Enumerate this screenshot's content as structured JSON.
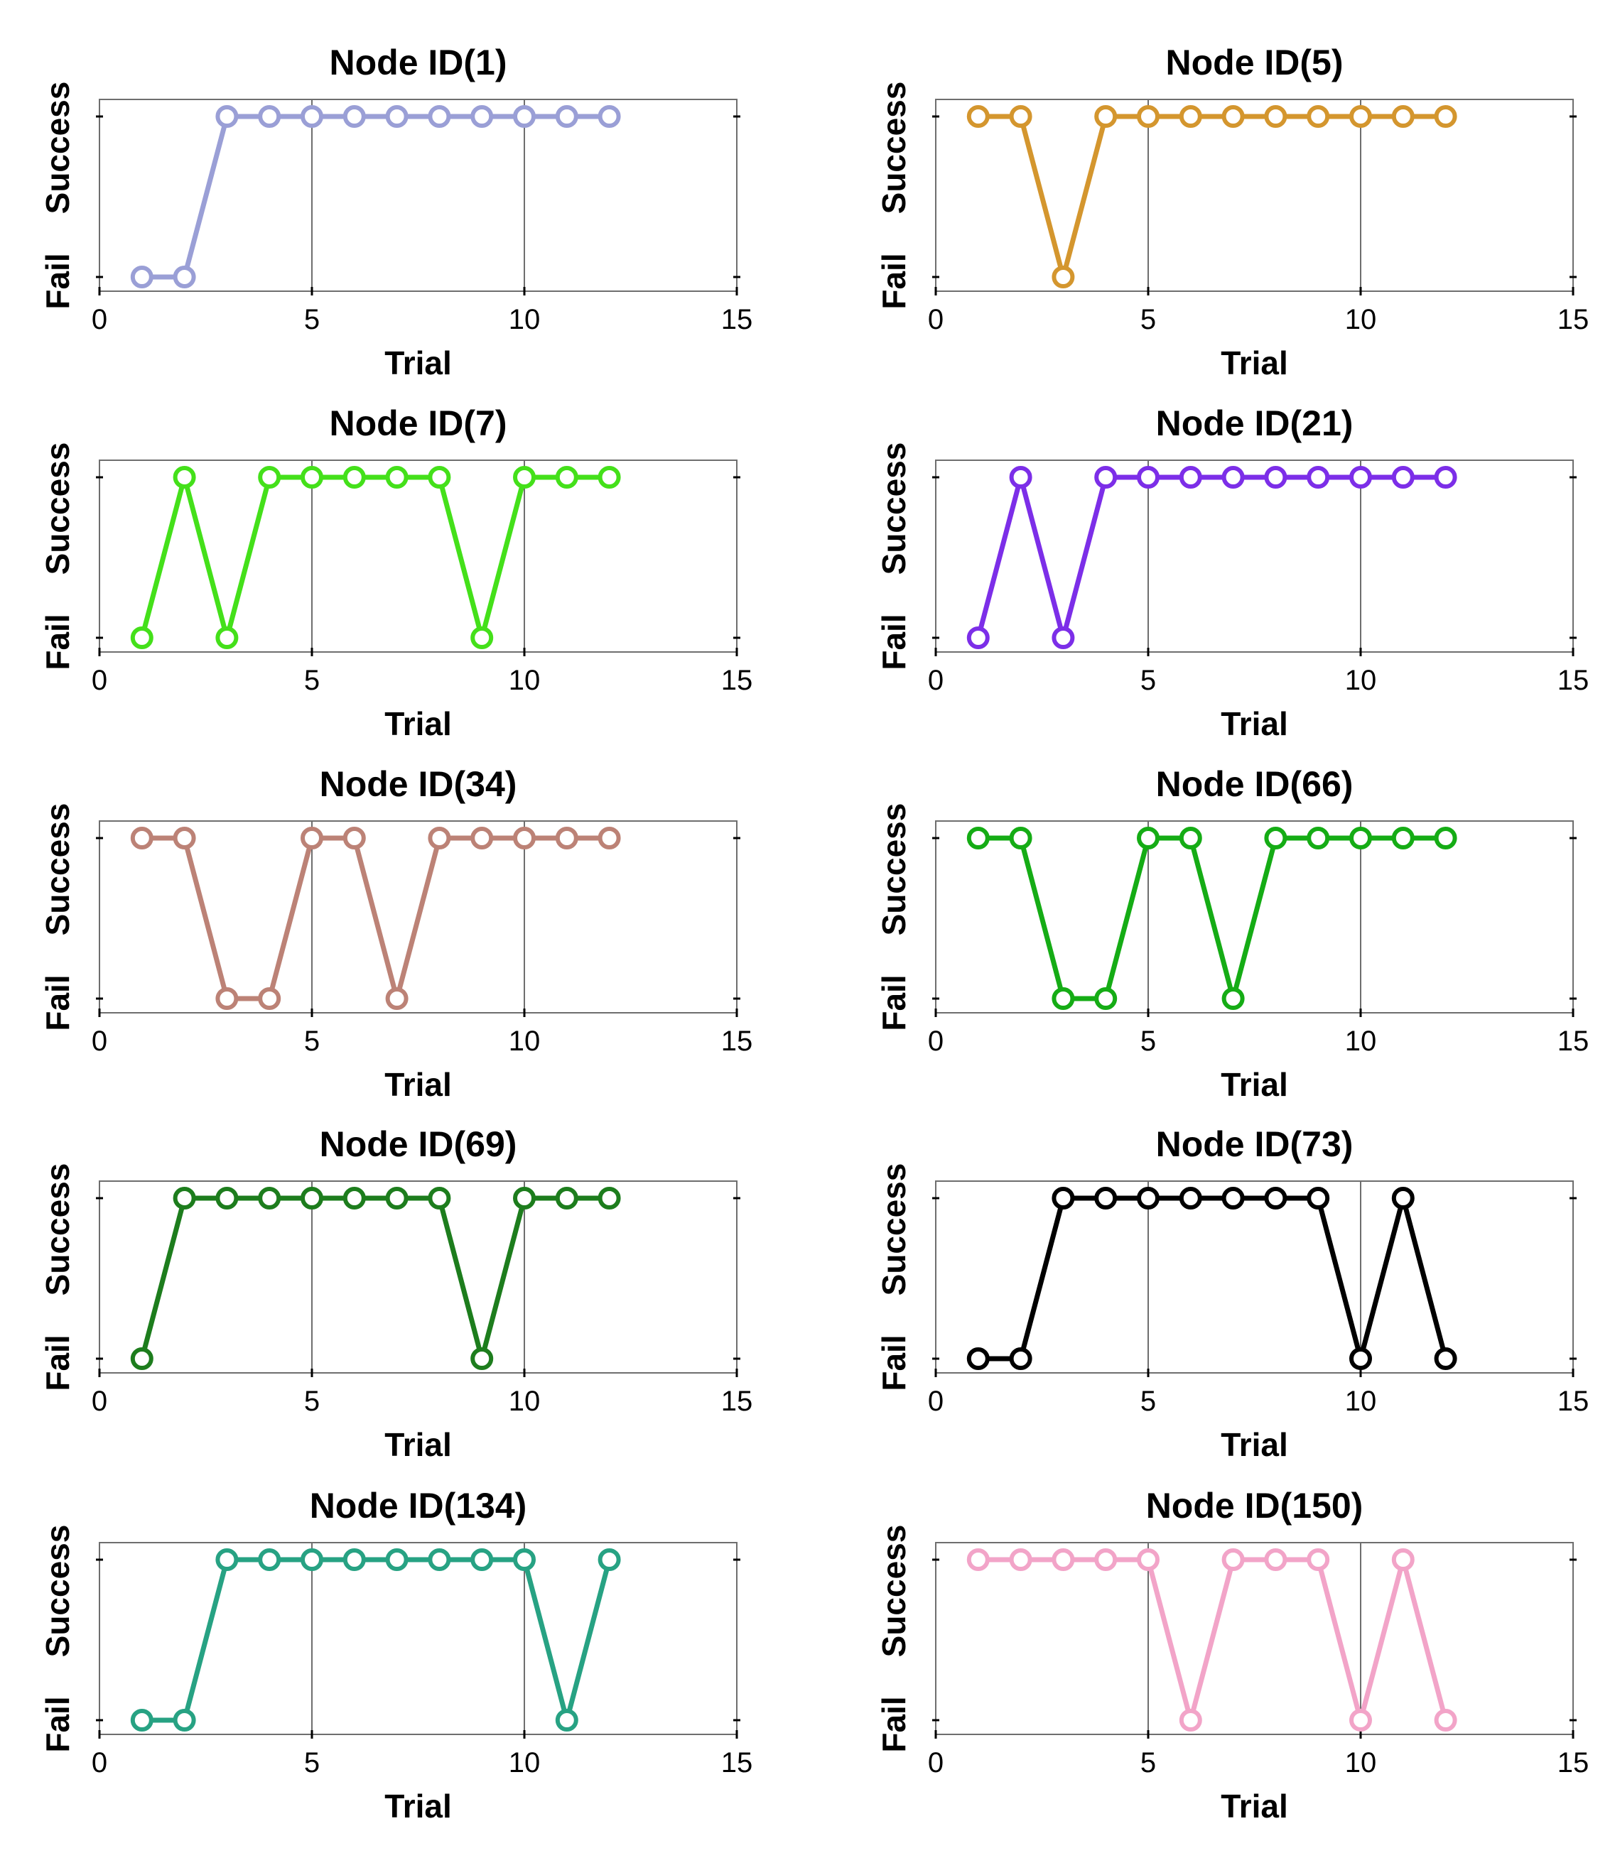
{
  "chart_data": [
    {
      "type": "line",
      "title": "Node ID(1)",
      "xlabel": "Trial",
      "ylabel_top": "Success",
      "ylabel_bottom": "Fail",
      "xlim": [
        0,
        15
      ],
      "xticks": [
        "0",
        "5",
        "10",
        "15"
      ],
      "grid": "vertical",
      "x": [
        1,
        2,
        3,
        4,
        5,
        6,
        7,
        8,
        9,
        10,
        11,
        12
      ],
      "values": [
        0,
        0,
        1,
        1,
        1,
        1,
        1,
        1,
        1,
        1,
        1,
        1
      ],
      "color": "#9a9fd6"
    },
    {
      "type": "line",
      "title": "Node ID(5)",
      "xlabel": "Trial",
      "ylabel_top": "Success",
      "ylabel_bottom": "Fail",
      "xlim": [
        0,
        15
      ],
      "xticks": [
        "0",
        "5",
        "10",
        "15"
      ],
      "grid": "vertical",
      "x": [
        1,
        2,
        3,
        4,
        5,
        6,
        7,
        8,
        9,
        10,
        11,
        12
      ],
      "values": [
        1,
        1,
        0,
        1,
        1,
        1,
        1,
        1,
        1,
        1,
        1,
        1
      ],
      "color": "#d4962e"
    },
    {
      "type": "line",
      "title": "Node ID(7)",
      "xlabel": "Trial",
      "ylabel_top": "Success",
      "ylabel_bottom": "Fail",
      "xlim": [
        0,
        15
      ],
      "xticks": [
        "0",
        "5",
        "10",
        "15"
      ],
      "grid": "vertical",
      "x": [
        1,
        2,
        3,
        4,
        5,
        6,
        7,
        8,
        9,
        10,
        11,
        12
      ],
      "values": [
        0,
        1,
        0,
        1,
        1,
        1,
        1,
        1,
        0,
        1,
        1,
        1
      ],
      "color": "#44e01a"
    },
    {
      "type": "line",
      "title": "Node ID(21)",
      "xlabel": "Trial",
      "ylabel_top": "Success",
      "ylabel_bottom": "Fail",
      "xlim": [
        0,
        15
      ],
      "xticks": [
        "0",
        "5",
        "10",
        "15"
      ],
      "grid": "vertical",
      "x": [
        1,
        2,
        3,
        4,
        5,
        6,
        7,
        8,
        9,
        10,
        11,
        12
      ],
      "values": [
        0,
        1,
        0,
        1,
        1,
        1,
        1,
        1,
        1,
        1,
        1,
        1
      ],
      "color": "#7c2ee8"
    },
    {
      "type": "line",
      "title": "Node ID(34)",
      "xlabel": "Trial",
      "ylabel_top": "Success",
      "ylabel_bottom": "Fail",
      "xlim": [
        0,
        15
      ],
      "xticks": [
        "0",
        "5",
        "10",
        "15"
      ],
      "grid": "vertical",
      "x": [
        1,
        2,
        3,
        4,
        5,
        6,
        7,
        8,
        9,
        10,
        11,
        12
      ],
      "values": [
        1,
        1,
        0,
        0,
        1,
        1,
        0,
        1,
        1,
        1,
        1,
        1
      ],
      "color": "#bc8276"
    },
    {
      "type": "line",
      "title": "Node ID(66)",
      "xlabel": "Trial",
      "ylabel_top": "Success",
      "ylabel_bottom": "Fail",
      "xlim": [
        0,
        15
      ],
      "xticks": [
        "0",
        "5",
        "10",
        "15"
      ],
      "grid": "vertical",
      "x": [
        1,
        2,
        3,
        4,
        5,
        6,
        7,
        8,
        9,
        10,
        11,
        12
      ],
      "values": [
        1,
        1,
        0,
        0,
        1,
        1,
        0,
        1,
        1,
        1,
        1,
        1
      ],
      "color": "#15ac15"
    },
    {
      "type": "line",
      "title": "Node ID(69)",
      "xlabel": "Trial",
      "ylabel_top": "Success",
      "ylabel_bottom": "Fail",
      "xlim": [
        0,
        15
      ],
      "xticks": [
        "0",
        "5",
        "10",
        "15"
      ],
      "grid": "vertical",
      "x": [
        1,
        2,
        3,
        4,
        5,
        6,
        7,
        8,
        9,
        10,
        11,
        12
      ],
      "values": [
        0,
        1,
        1,
        1,
        1,
        1,
        1,
        1,
        0,
        1,
        1,
        1
      ],
      "color": "#1d7d1d"
    },
    {
      "type": "line",
      "title": "Node ID(73)",
      "xlabel": "Trial",
      "ylabel_top": "Success",
      "ylabel_bottom": "Fail",
      "xlim": [
        0,
        15
      ],
      "xticks": [
        "0",
        "5",
        "10",
        "15"
      ],
      "grid": "vertical",
      "x": [
        1,
        2,
        3,
        4,
        5,
        6,
        7,
        8,
        9,
        10,
        11,
        12
      ],
      "values": [
        0,
        0,
        1,
        1,
        1,
        1,
        1,
        1,
        1,
        0,
        1,
        0
      ],
      "color": "#000000"
    },
    {
      "type": "line",
      "title": "Node ID(134)",
      "xlabel": "Trial",
      "ylabel_top": "Success",
      "ylabel_bottom": "Fail",
      "xlim": [
        0,
        15
      ],
      "xticks": [
        "0",
        "5",
        "10",
        "15"
      ],
      "grid": "vertical",
      "x": [
        1,
        2,
        3,
        4,
        5,
        6,
        7,
        8,
        9,
        10,
        11,
        12
      ],
      "values": [
        0,
        0,
        1,
        1,
        1,
        1,
        1,
        1,
        1,
        1,
        0,
        1
      ],
      "color": "#27a283"
    },
    {
      "type": "line",
      "title": "Node ID(150)",
      "xlabel": "Trial",
      "ylabel_top": "Success",
      "ylabel_bottom": "Fail",
      "xlim": [
        0,
        15
      ],
      "xticks": [
        "0",
        "5",
        "10",
        "15"
      ],
      "grid": "vertical",
      "x": [
        1,
        2,
        3,
        4,
        5,
        6,
        7,
        8,
        9,
        10,
        11,
        12
      ],
      "values": [
        1,
        1,
        1,
        1,
        1,
        0,
        1,
        1,
        1,
        0,
        1,
        0
      ],
      "color": "#f2a4c8"
    }
  ]
}
